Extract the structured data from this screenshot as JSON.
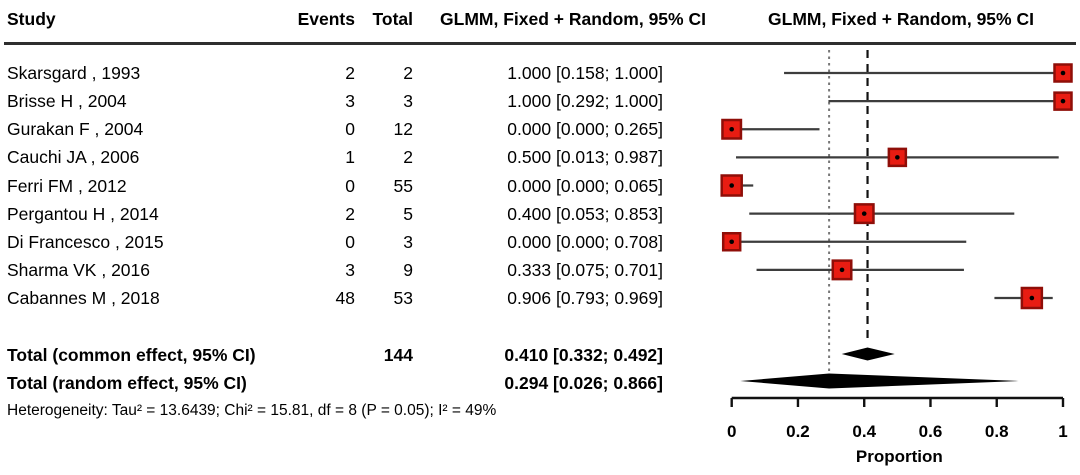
{
  "header": {
    "study": "Study",
    "events": "Events",
    "total": "Total",
    "ci_column": "GLMM, Fixed + Random, 95% CI",
    "plot_column": "GLMM, Fixed + Random, 95% CI"
  },
  "axis": {
    "tick_labels": [
      "0",
      "0.2",
      "0.4",
      "0.6",
      "0.8",
      "1"
    ],
    "label": "Proportion"
  },
  "colors": {
    "square_fill": "#e81c12",
    "square_border": "#8f0e08",
    "ci_line": "#3d3d3d",
    "diamond": "#000000",
    "dashed_ref": "#111111",
    "dotted_ref": "#777777",
    "axis": "#111111"
  },
  "chart_data": {
    "type": "forest",
    "xlabel": "Proportion",
    "xlim": [
      0,
      1
    ],
    "x_ticks": [
      0,
      0.2,
      0.4,
      0.6,
      0.8,
      1
    ],
    "columns": [
      "Study",
      "Events",
      "Total",
      "GLMM, Fixed + Random, 95% CI"
    ],
    "studies": [
      {
        "study": "Skarsgard , 1993",
        "events": 2,
        "total": 2,
        "estimate": 1.0,
        "ci_lower": 0.158,
        "ci_upper": 1.0,
        "ci_text": "1.000 [0.158; 1.000]"
      },
      {
        "study": "Brisse H , 2004",
        "events": 3,
        "total": 3,
        "estimate": 1.0,
        "ci_lower": 0.292,
        "ci_upper": 1.0,
        "ci_text": "1.000 [0.292; 1.000]"
      },
      {
        "study": "Gurakan F , 2004",
        "events": 0,
        "total": 12,
        "estimate": 0.0,
        "ci_lower": 0.0,
        "ci_upper": 0.265,
        "ci_text": "0.000 [0.000; 0.265]"
      },
      {
        "study": "Cauchi JA , 2006",
        "events": 1,
        "total": 2,
        "estimate": 0.5,
        "ci_lower": 0.013,
        "ci_upper": 0.987,
        "ci_text": "0.500 [0.013; 0.987]"
      },
      {
        "study": "Ferri FM , 2012",
        "events": 0,
        "total": 55,
        "estimate": 0.0,
        "ci_lower": 0.0,
        "ci_upper": 0.065,
        "ci_text": "0.000 [0.000; 0.065]"
      },
      {
        "study": "Pergantou H , 2014",
        "events": 2,
        "total": 5,
        "estimate": 0.4,
        "ci_lower": 0.053,
        "ci_upper": 0.853,
        "ci_text": "0.400 [0.053; 0.853]"
      },
      {
        "study": "Di Francesco , 2015",
        "events": 0,
        "total": 3,
        "estimate": 0.0,
        "ci_lower": 0.0,
        "ci_upper": 0.708,
        "ci_text": "0.000 [0.000; 0.708]"
      },
      {
        "study": "Sharma VK , 2016",
        "events": 3,
        "total": 9,
        "estimate": 0.333,
        "ci_lower": 0.075,
        "ci_upper": 0.701,
        "ci_text": "0.333 [0.075; 0.701]"
      },
      {
        "study": "Cabannes M , 2018",
        "events": 48,
        "total": 53,
        "estimate": 0.906,
        "ci_lower": 0.793,
        "ci_upper": 0.969,
        "ci_text": "0.906 [0.793; 0.969]"
      }
    ],
    "totals": [
      {
        "label": "Total (common effect, 95% CI)",
        "total": 144,
        "estimate": 0.41,
        "ci_lower": 0.332,
        "ci_upper": 0.492,
        "ci_text": "0.410 [0.332; 0.492]"
      },
      {
        "label": "Total (random effect, 95% CI)",
        "estimate": 0.294,
        "ci_lower": 0.026,
        "ci_upper": 0.866,
        "ci_text": "0.294 [0.026; 0.866]"
      }
    ],
    "reference_lines": [
      {
        "style": "dashed",
        "x": 0.41,
        "meaning": "common effect estimate"
      },
      {
        "style": "dotted",
        "x": 0.294,
        "meaning": "random effect estimate"
      }
    ],
    "heterogeneity": "Heterogeneity: Tau² = 13.6439; Chi² = 15.81, df = 8 (P = 0.05); I² = 49%"
  }
}
